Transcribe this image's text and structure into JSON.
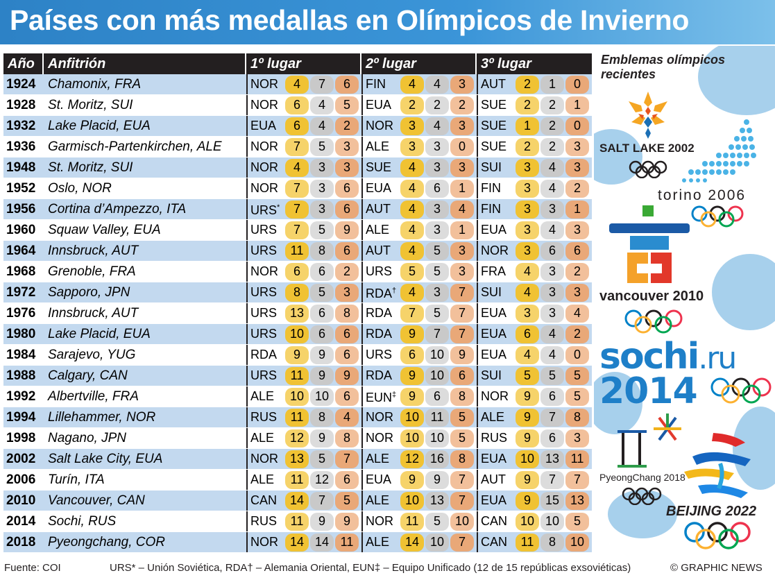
{
  "title": "Países con más medallas en Olímpicos de Invierno",
  "table": {
    "headers": {
      "year": "Año",
      "host": "Anfitrión",
      "first": "1º lugar",
      "second": "2º lugar",
      "third": "3º lugar"
    },
    "rows": [
      {
        "year": "1924",
        "host": "Chamonix, FRA",
        "p": [
          [
            "NOR",
            "",
            4,
            7,
            6
          ],
          [
            "FIN",
            "",
            4,
            4,
            3
          ],
          [
            "AUT",
            "",
            2,
            1,
            0
          ]
        ]
      },
      {
        "year": "1928",
        "host": "St. Moritz, SUI",
        "p": [
          [
            "NOR",
            "",
            6,
            4,
            5
          ],
          [
            "EUA",
            "",
            2,
            2,
            2
          ],
          [
            "SUE",
            "",
            2,
            2,
            1
          ]
        ]
      },
      {
        "year": "1932",
        "host": "Lake Placid, EUA",
        "p": [
          [
            "EUA",
            "",
            6,
            4,
            2
          ],
          [
            "NOR",
            "",
            3,
            4,
            3
          ],
          [
            "SUE",
            "",
            1,
            2,
            0
          ]
        ]
      },
      {
        "year": "1936",
        "host": "Garmisch-Partenkirchen, ALE",
        "p": [
          [
            "NOR",
            "",
            7,
            5,
            3
          ],
          [
            "ALE",
            "",
            3,
            3,
            0
          ],
          [
            "SUE",
            "",
            2,
            2,
            3
          ]
        ]
      },
      {
        "year": "1948",
        "host": "St. Moritz, SUI",
        "p": [
          [
            "NOR",
            "",
            4,
            3,
            3
          ],
          [
            "SUE",
            "",
            4,
            3,
            3
          ],
          [
            "SUI",
            "",
            3,
            4,
            3
          ]
        ]
      },
      {
        "year": "1952",
        "host": "Oslo, NOR",
        "p": [
          [
            "NOR",
            "",
            7,
            3,
            6
          ],
          [
            "EUA",
            "",
            4,
            6,
            1
          ],
          [
            "FIN",
            "",
            3,
            4,
            2
          ]
        ]
      },
      {
        "year": "1956",
        "host": "Cortina d’Ampezzo, ITA",
        "p": [
          [
            "URS",
            "*",
            7,
            3,
            6
          ],
          [
            "AUT",
            "",
            4,
            3,
            4
          ],
          [
            "FIN",
            "",
            3,
            3,
            1
          ]
        ]
      },
      {
        "year": "1960",
        "host": "Squaw Valley, EUA",
        "p": [
          [
            "URS",
            "",
            7,
            5,
            9
          ],
          [
            "ALE",
            "",
            4,
            3,
            1
          ],
          [
            "EUA",
            "",
            3,
            4,
            3
          ]
        ]
      },
      {
        "year": "1964",
        "host": "Innsbruck, AUT",
        "p": [
          [
            "URS",
            "",
            11,
            8,
            6
          ],
          [
            "AUT",
            "",
            4,
            5,
            3
          ],
          [
            "NOR",
            "",
            3,
            6,
            6
          ]
        ]
      },
      {
        "year": "1968",
        "host": "Grenoble, FRA",
        "p": [
          [
            "NOR",
            "",
            6,
            6,
            2
          ],
          [
            "URS",
            "",
            5,
            5,
            3
          ],
          [
            "FRA",
            "",
            4,
            3,
            2
          ]
        ]
      },
      {
        "year": "1972",
        "host": "Sapporo, JPN",
        "p": [
          [
            "URS",
            "",
            8,
            5,
            3
          ],
          [
            "RDA",
            "†",
            4,
            3,
            7
          ],
          [
            "SUI",
            "",
            4,
            3,
            3
          ]
        ]
      },
      {
        "year": "1976",
        "host": "Innsbruck, AUT",
        "p": [
          [
            "URS",
            "",
            13,
            6,
            8
          ],
          [
            "RDA",
            "",
            7,
            5,
            7
          ],
          [
            "EUA",
            "",
            3,
            3,
            4
          ]
        ]
      },
      {
        "year": "1980",
        "host": "Lake Placid, EUA",
        "p": [
          [
            "URS",
            "",
            10,
            6,
            6
          ],
          [
            "RDA",
            "",
            9,
            7,
            7
          ],
          [
            "EUA",
            "",
            6,
            4,
            2
          ]
        ]
      },
      {
        "year": "1984",
        "host": "Sarajevo, YUG",
        "p": [
          [
            "RDA",
            "",
            9,
            9,
            6
          ],
          [
            "URS",
            "",
            6,
            10,
            9
          ],
          [
            "EUA",
            "",
            4,
            4,
            0
          ]
        ]
      },
      {
        "year": "1988",
        "host": "Calgary, CAN",
        "p": [
          [
            "URS",
            "",
            11,
            9,
            9
          ],
          [
            "RDA",
            "",
            9,
            10,
            6
          ],
          [
            "SUI",
            "",
            5,
            5,
            5
          ]
        ]
      },
      {
        "year": "1992",
        "host": "Albertville, FRA",
        "p": [
          [
            "ALE",
            "",
            10,
            10,
            6
          ],
          [
            "EUN",
            "‡",
            9,
            6,
            8
          ],
          [
            "NOR",
            "",
            9,
            6,
            5
          ]
        ]
      },
      {
        "year": "1994",
        "host": "Lillehammer, NOR",
        "p": [
          [
            "RUS",
            "",
            11,
            8,
            4
          ],
          [
            "NOR",
            "",
            10,
            11,
            5
          ],
          [
            "ALE",
            "",
            9,
            7,
            8
          ]
        ]
      },
      {
        "year": "1998",
        "host": "Nagano, JPN",
        "p": [
          [
            "ALE",
            "",
            12,
            9,
            8
          ],
          [
            "NOR",
            "",
            10,
            10,
            5
          ],
          [
            "RUS",
            "",
            9,
            6,
            3
          ]
        ]
      },
      {
        "year": "2002",
        "host": "Salt Lake City, EUA",
        "p": [
          [
            "NOR",
            "",
            13,
            5,
            7
          ],
          [
            "ALE",
            "",
            12,
            16,
            8
          ],
          [
            "EUA",
            "",
            10,
            13,
            11
          ]
        ]
      },
      {
        "year": "2006",
        "host": "Turín, ITA",
        "p": [
          [
            "ALE",
            "",
            11,
            12,
            6
          ],
          [
            "EUA",
            "",
            9,
            9,
            7
          ],
          [
            "AUT",
            "",
            9,
            7,
            7
          ]
        ]
      },
      {
        "year": "2010",
        "host": "Vancouver, CAN",
        "p": [
          [
            "CAN",
            "",
            14,
            7,
            5
          ],
          [
            "ALE",
            "",
            10,
            13,
            7
          ],
          [
            "EUA",
            "",
            9,
            15,
            13
          ]
        ]
      },
      {
        "year": "2014",
        "host": "Sochi, RUS",
        "p": [
          [
            "RUS",
            "",
            11,
            9,
            9
          ],
          [
            "NOR",
            "",
            11,
            5,
            10
          ],
          [
            "CAN",
            "",
            10,
            10,
            5
          ]
        ]
      },
      {
        "year": "2018",
        "host": "Pyeongchang, COR",
        "p": [
          [
            "NOR",
            "",
            14,
            14,
            11
          ],
          [
            "ALE",
            "",
            14,
            10,
            7
          ],
          [
            "CAN",
            "",
            11,
            8,
            10
          ]
        ]
      }
    ]
  },
  "sidebar": {
    "title": "Emblemas olímpicos recientes",
    "emblems": {
      "saltlake": "SALT LAKE 2002",
      "torino": "torino 2006",
      "vancouver": "vancouver 2010",
      "sochi_line1": "sochi",
      "sochi_domain": ".ru",
      "sochi_line2": "2014",
      "pyeongchang": "PyeongChang 2018",
      "beijing": "BEIJING 2022"
    }
  },
  "footer": {
    "source": "Fuente: COI",
    "notes": "URS* – Unión Soviética, RDA† – Alemania Oriental, EUN‡ – Equipo Unificado (12 de 15 repúblicas exsoviéticas)",
    "credit": "© GRAPHIC NEWS"
  },
  "colors": {
    "banner": "#3b95d8",
    "gold": "#f0c233",
    "silver": "#c9c9c9",
    "bronze": "#e9a878",
    "row_shade": "#c3d9ef",
    "header": "#231f20"
  }
}
